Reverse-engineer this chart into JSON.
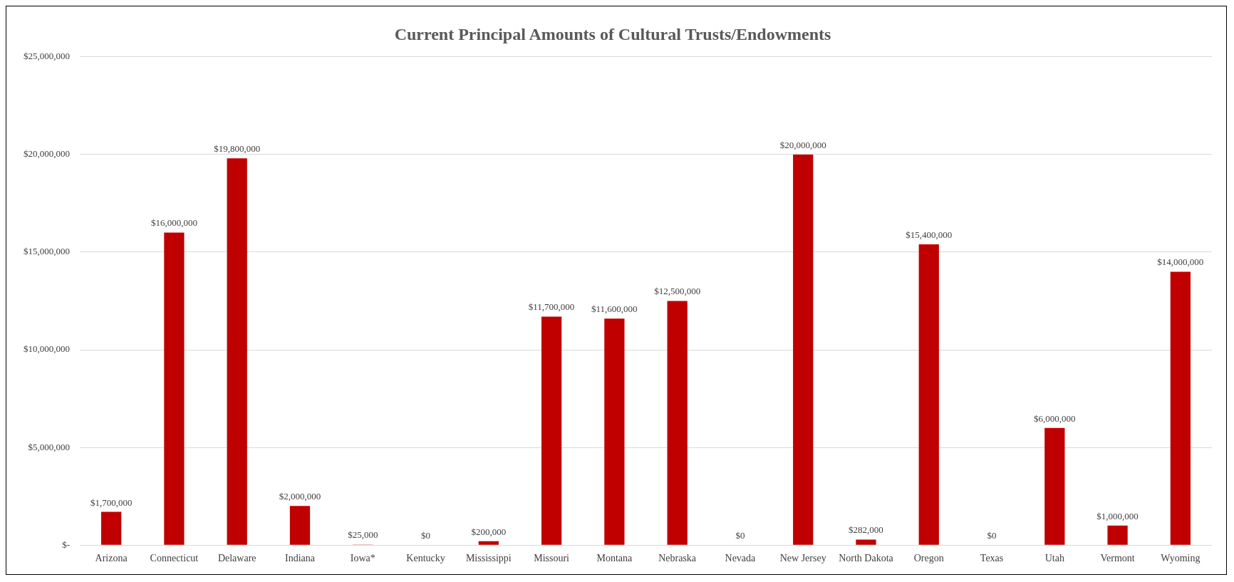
{
  "chart_data": {
    "type": "bar",
    "title": "Current Principal Amounts of Cultural Trusts/Endowments",
    "categories": [
      "Arizona",
      "Connecticut",
      "Delaware",
      "Indiana",
      "Iowa*",
      "Kentucky",
      "Mississippi",
      "Missouri",
      "Montana",
      "Nebraska",
      "Nevada",
      "New Jersey",
      "North Dakota",
      "Oregon",
      "Texas",
      "Utah",
      "Vermont",
      "Wyoming"
    ],
    "values": [
      1700000,
      16000000,
      19800000,
      2000000,
      25000,
      0,
      200000,
      11700000,
      11600000,
      12500000,
      0,
      20000000,
      282000,
      15400000,
      0,
      6000000,
      1000000,
      14000000
    ],
    "value_labels": [
      "$1,700,000",
      "$16,000,000",
      "$19,800,000",
      "$2,000,000",
      "$25,000",
      "$0",
      "$200,000",
      "$11,700,000",
      "$11,600,000",
      "$12,500,000",
      "$0",
      "$20,000,000",
      "$282,000",
      "$15,400,000",
      "$0",
      "$6,000,000",
      "$1,000,000",
      "$14,000,000"
    ],
    "color": "#c00000",
    "ylim": [
      0,
      25000000
    ],
    "yticks": [
      {
        "value": 0,
        "label": "$-"
      },
      {
        "value": 5000000,
        "label": "$5,000,000"
      },
      {
        "value": 10000000,
        "label": "$10,000,000"
      },
      {
        "value": 15000000,
        "label": "$15,000,000"
      },
      {
        "value": 20000000,
        "label": "$20,000,000"
      },
      {
        "value": 25000000,
        "label": "$25,000,000"
      }
    ],
    "grid": "y",
    "legend": false
  }
}
